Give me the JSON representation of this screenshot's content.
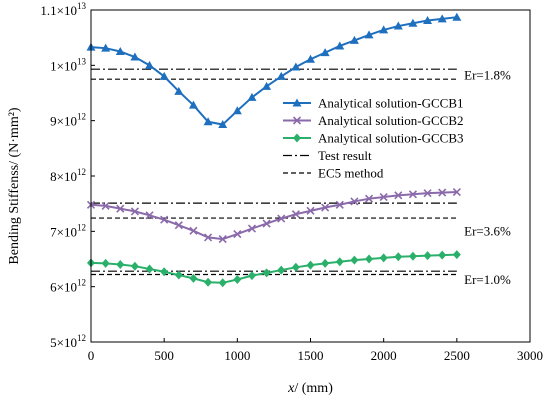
{
  "chart_data": {
    "type": "line",
    "xlabel_prefix": "x",
    "xlabel_rest": "/ (mm)",
    "ylabel": "Bending Stiffenss/ (N·mm²)",
    "xlim": [
      0,
      3000
    ],
    "ylim": [
      5000000000000.0,
      11000000000000.0
    ],
    "x_ticks": [
      0,
      500,
      1000,
      1500,
      2000,
      2500,
      3000
    ],
    "y_ticks": [
      {
        "value": 5000000000000.0,
        "mant": "5×10",
        "exp": "12"
      },
      {
        "value": 6000000000000.0,
        "mant": "6×10",
        "exp": "12"
      },
      {
        "value": 7000000000000.0,
        "mant": "7×10",
        "exp": "12"
      },
      {
        "value": 8000000000000.0,
        "mant": "8×10",
        "exp": "12"
      },
      {
        "value": 9000000000000.0,
        "mant": "9×10",
        "exp": "12"
      },
      {
        "value": 10000000000000.0,
        "mant": "1×10",
        "exp": "13"
      },
      {
        "value": 11000000000000.0,
        "mant": "1.1×10",
        "exp": "13"
      }
    ],
    "x": [
      0,
      100,
      200,
      300,
      400,
      500,
      600,
      700,
      800,
      900,
      1000,
      1100,
      1200,
      1300,
      1400,
      1500,
      1600,
      1700,
      1800,
      1900,
      2000,
      2100,
      2200,
      2300,
      2400,
      2500
    ],
    "series": [
      {
        "name": "Analytical solution-GCCB1",
        "color": "#1f6fbf",
        "marker": "triangle",
        "values": [
          10330000000000.0,
          10310000000000.0,
          10250000000000.0,
          10150000000000.0,
          10000000000000.0,
          9800000000000.0,
          9530000000000.0,
          9280000000000.0,
          8980000000000.0,
          8930000000000.0,
          9180000000000.0,
          9420000000000.0,
          9620000000000.0,
          9800000000000.0,
          9970000000000.0,
          10110000000000.0,
          10230000000000.0,
          10350000000000.0,
          10450000000000.0,
          10550000000000.0,
          10640000000000.0,
          10710000000000.0,
          10760000000000.0,
          10810000000000.0,
          10840000000000.0,
          10870000000000.0
        ]
      },
      {
        "name": "Analytical solution-GCCB2",
        "color": "#8a6aaa",
        "marker": "x",
        "values": [
          7480000000000.0,
          7460000000000.0,
          7410000000000.0,
          7360000000000.0,
          7290000000000.0,
          7210000000000.0,
          7110000000000.0,
          7010000000000.0,
          6890000000000.0,
          6860000000000.0,
          6950000000000.0,
          7050000000000.0,
          7140000000000.0,
          7230000000000.0,
          7310000000000.0,
          7370000000000.0,
          7430000000000.0,
          7480000000000.0,
          7540000000000.0,
          7590000000000.0,
          7620000000000.0,
          7650000000000.0,
          7670000000000.0,
          7690000000000.0,
          7700000000000.0,
          7710000000000.0
        ]
      },
      {
        "name": "Analytical solution-GCCB3",
        "color": "#2ab06a",
        "marker": "diamond",
        "values": [
          6430000000000.0,
          6420000000000.0,
          6400000000000.0,
          6370000000000.0,
          6320000000000.0,
          6270000000000.0,
          6210000000000.0,
          6150000000000.0,
          6080000000000.0,
          6070000000000.0,
          6130000000000.0,
          6200000000000.0,
          6250000000000.0,
          6300000000000.0,
          6350000000000.0,
          6390000000000.0,
          6420000000000.0,
          6450000000000.0,
          6480000000000.0,
          6500000000000.0,
          6520000000000.0,
          6540000000000.0,
          6550000000000.0,
          6560000000000.0,
          6570000000000.0,
          6580000000000.0
        ]
      }
    ],
    "reference_lines": [
      {
        "name": "Test result",
        "style": "dashdot",
        "x_range": [
          0,
          2500
        ],
        "values": [
          9930000000000.0,
          7510000000000.0,
          6280000000000.0
        ]
      },
      {
        "name": "EC5 method",
        "style": "dashed",
        "x_range": [
          0,
          2500
        ],
        "values": [
          9750000000000.0,
          7240000000000.0,
          6220000000000.0
        ]
      }
    ],
    "annotations": [
      {
        "text": "Er=1.8%",
        "x": 2550,
        "y": 9820000000000.0
      },
      {
        "text": "Er=3.6%",
        "x": 2550,
        "y": 7000000000000.0
      },
      {
        "text": "Er=1.0%",
        "x": 2550,
        "y": 6120000000000.0
      }
    ],
    "legend": {
      "placement": "right-middle",
      "entries": [
        {
          "label": "Analytical solution-GCCB1",
          "kind": "series",
          "index": 0
        },
        {
          "label": "Analytical solution-GCCB2",
          "kind": "series",
          "index": 1
        },
        {
          "label": "Analytical solution-GCCB3",
          "kind": "series",
          "index": 2
        },
        {
          "label": "Test result",
          "kind": "ref",
          "index": 0
        },
        {
          "label": "EC5 method",
          "kind": "ref",
          "index": 1
        }
      ]
    },
    "grid": false
  }
}
